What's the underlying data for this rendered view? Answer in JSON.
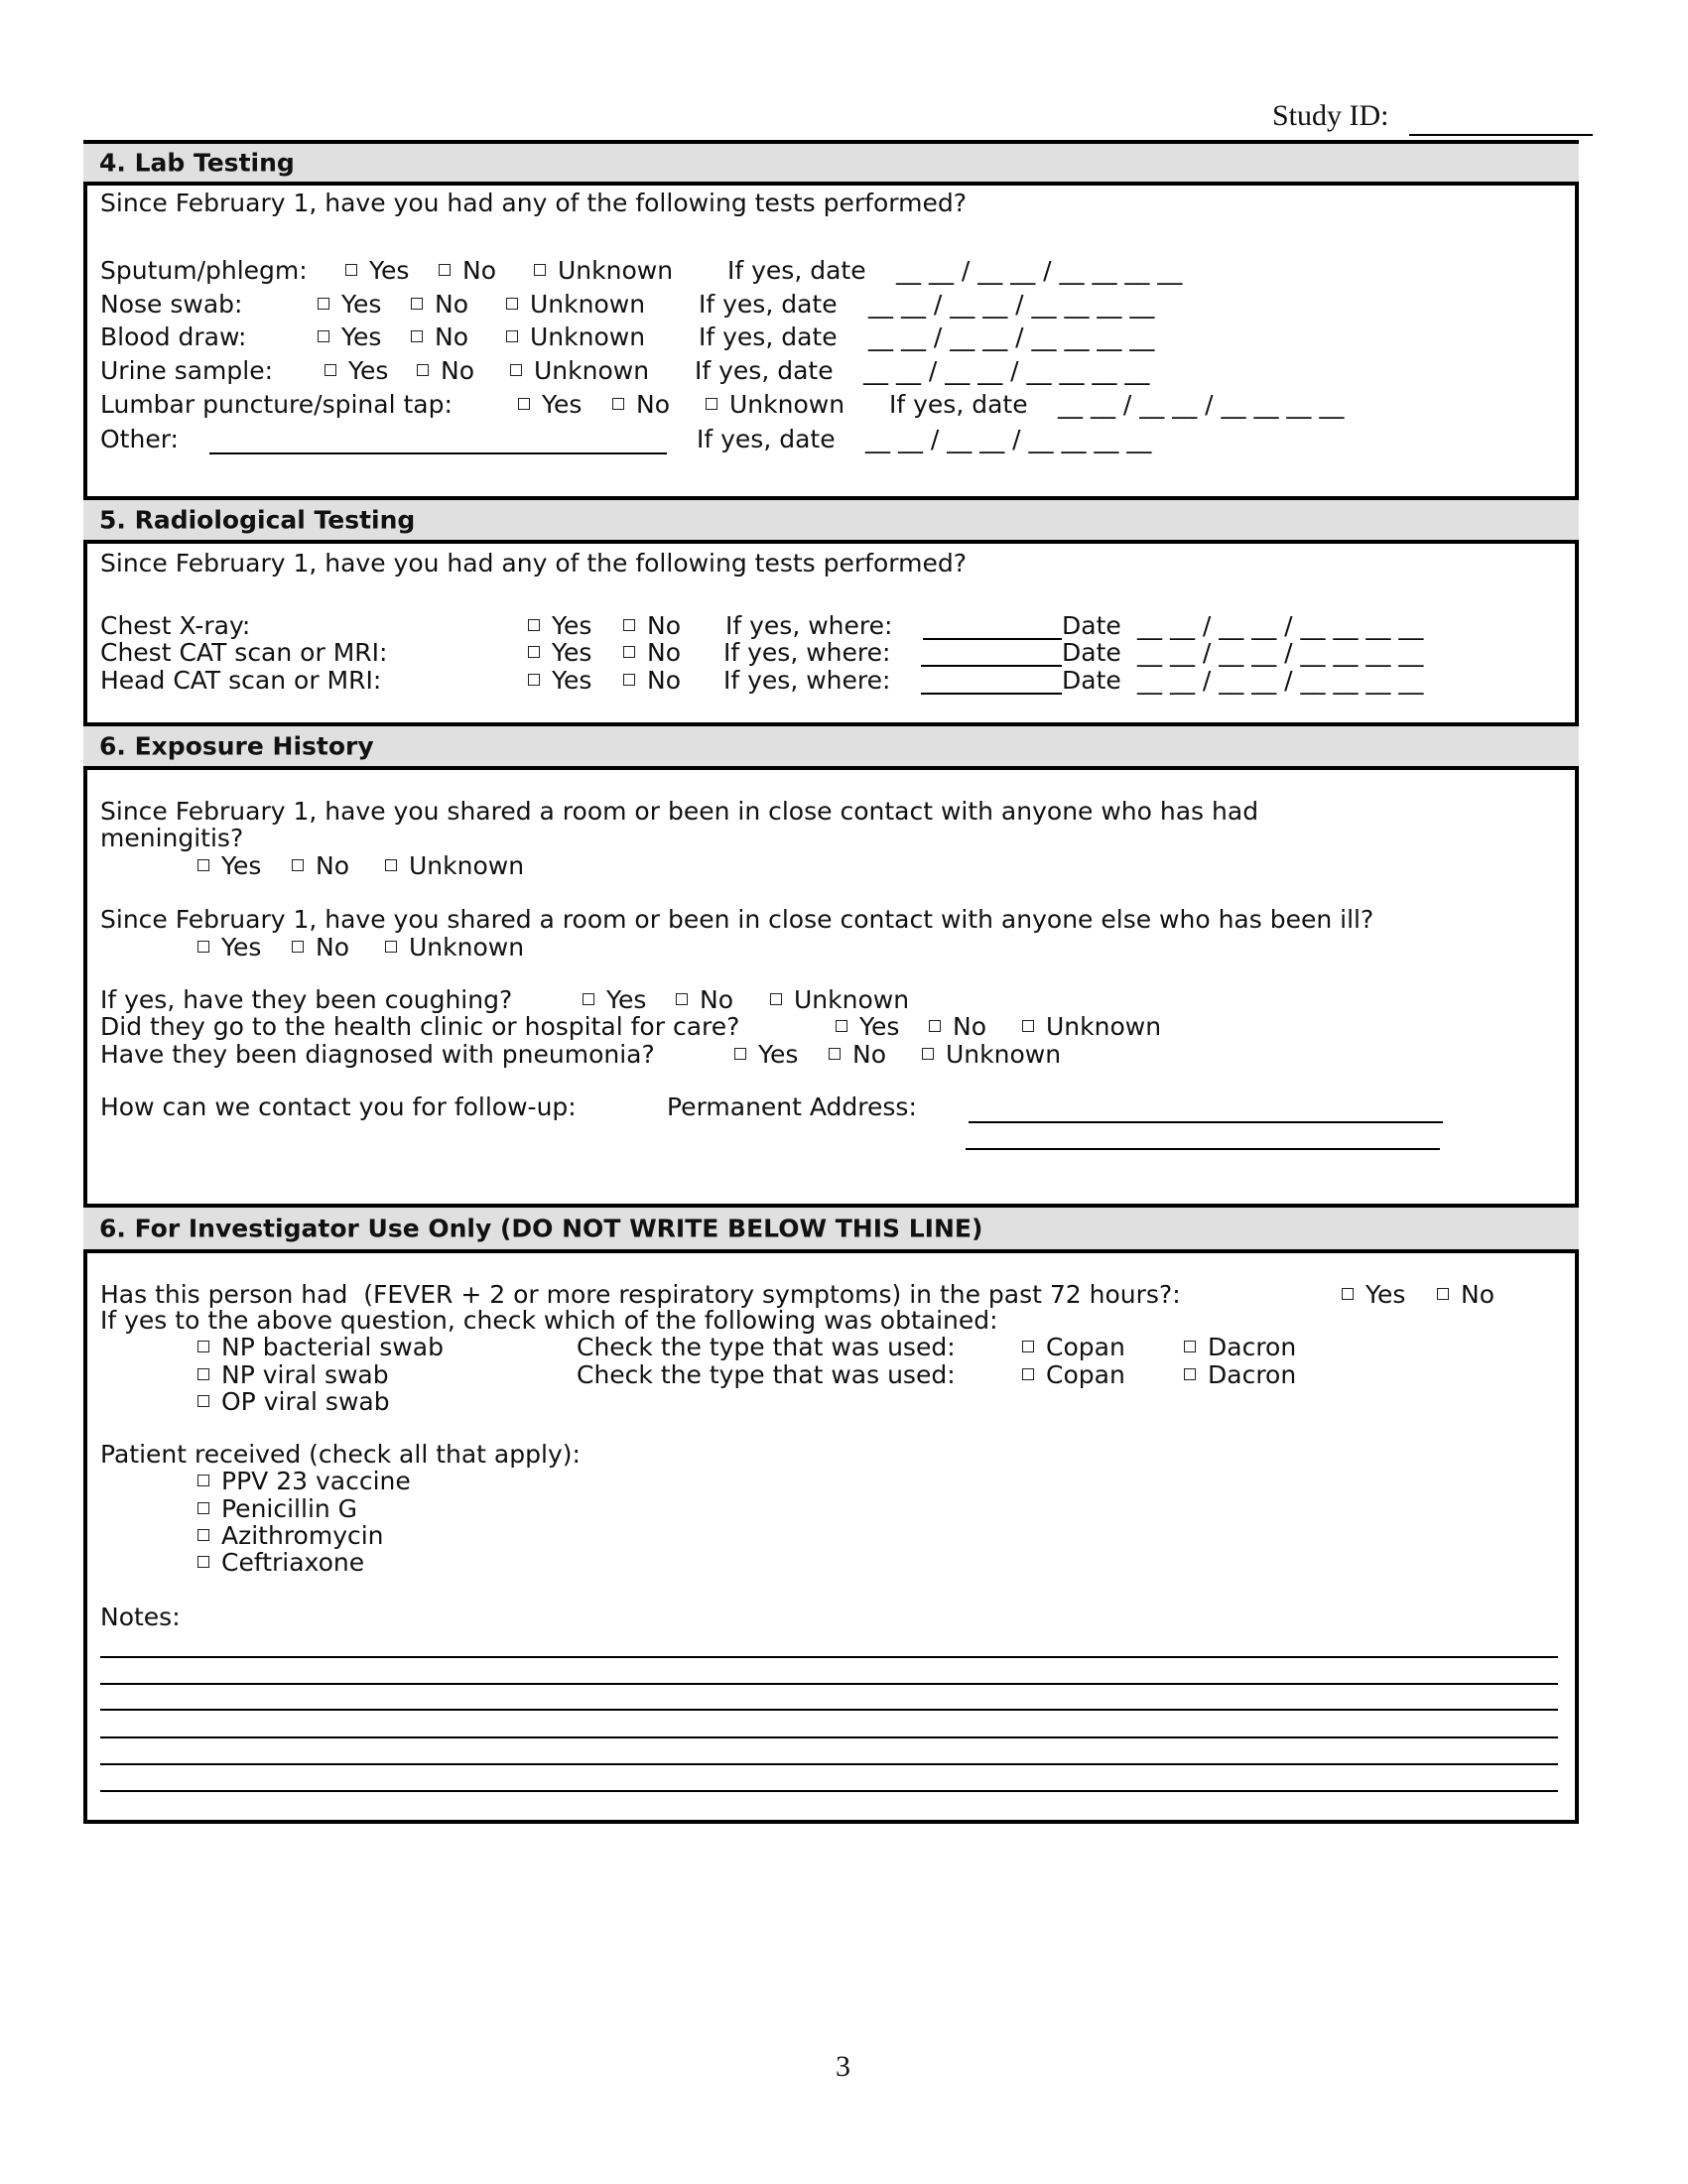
{
  "study_id_label": "Study ID:",
  "page_number": "3",
  "date_blank": "__ __ / __ __ / __ __ __ __",
  "options": {
    "yes": "Yes",
    "no": "No",
    "unknown": "Unknown"
  },
  "lab": {
    "title": "4. Lab Testing",
    "question": "Since February 1, have you had any of the following tests performed?",
    "if_yes_date": "If yes, date",
    "rows": [
      {
        "label": "Sputum/phlegm:"
      },
      {
        "label": "Nose swab:"
      },
      {
        "label": "Blood draw:"
      },
      {
        "label": "Urine sample:"
      },
      {
        "label": "Lumbar puncture/spinal tap:"
      }
    ],
    "other_label": "Other:"
  },
  "radio": {
    "title": "5. Radiological Testing",
    "question": "Since February 1, have you had any of the following tests performed?",
    "if_yes_where": "If yes, where:",
    "date_label": "Date",
    "rows": [
      {
        "label": "Chest X-ray:"
      },
      {
        "label": "Chest CAT scan or MRI:"
      },
      {
        "label": "Head CAT scan or MRI:"
      }
    ]
  },
  "exposure": {
    "title": "6. Exposure History",
    "q1_line1": "Since February 1, have you shared a room or been in close contact with anyone who has had",
    "q1_line2": "meningitis?",
    "q2": "Since February 1, have you shared a room or been in close contact with anyone else who has been ill?",
    "q3": "If yes, have they been coughing?",
    "q4": "Did they go to the health clinic or hospital for care?",
    "q5": "Have they been diagnosed with pneumonia?",
    "contact": "How can we contact you for follow-up:",
    "address": "Permanent Address:"
  },
  "investigator": {
    "title": "6. For Investigator Use Only (DO NOT WRITE BELOW THIS LINE)",
    "q1": "Has this person had  (FEVER + 2 or more respiratory symptoms) in the past 72 hours?:",
    "q2": "If yes to the above question, check which of the following was obtained:",
    "swabs": [
      "NP bacterial swab",
      "NP viral swab",
      "OP viral swab"
    ],
    "check_type": "Check the type that was used:",
    "copan": "Copan",
    "dacron": "Dacron",
    "received_label": "Patient received (check all that apply):",
    "treatments": [
      "PPV 23 vaccine",
      "Penicillin G",
      "Azithromycin",
      "Ceftriaxone"
    ],
    "notes_label": "Notes:"
  }
}
